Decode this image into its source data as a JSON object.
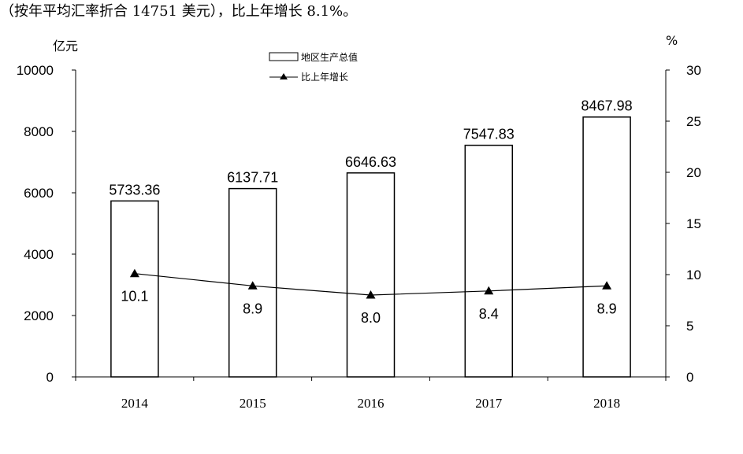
{
  "caption": "（按年平均汇率折合 14751 美元），比上年增长 8.1%。",
  "chart_data": {
    "type": "bar",
    "categories": [
      "2014",
      "2015",
      "2016",
      "2017",
      "2018"
    ],
    "series": [
      {
        "name": "地区生产总值",
        "type": "bar",
        "axis": "left",
        "values": [
          5733.36,
          6137.71,
          6646.63,
          7547.83,
          8467.98
        ],
        "labels": [
          "5733.36",
          "6137.71",
          "6646.63",
          "7547.83",
          "8467.98"
        ]
      },
      {
        "name": "比上年增长",
        "type": "line",
        "axis": "right",
        "values": [
          10.1,
          8.9,
          8.0,
          8.4,
          8.9
        ],
        "labels": [
          "10.1",
          "8.9",
          "8.0",
          "8.4",
          "8.9"
        ]
      }
    ],
    "y_left": {
      "unit": "亿元",
      "min": 0,
      "max": 10000,
      "ticks": [
        0,
        2000,
        4000,
        6000,
        8000,
        10000
      ]
    },
    "y_right": {
      "unit": "%",
      "min": 0,
      "max": 30,
      "ticks": [
        0,
        5,
        10,
        15,
        20,
        25,
        30
      ]
    },
    "legend_position": "top-center",
    "grid": false,
    "colors": {
      "bar_fill": "#ffffff",
      "bar_stroke": "#000000",
      "line": "#000000"
    }
  }
}
